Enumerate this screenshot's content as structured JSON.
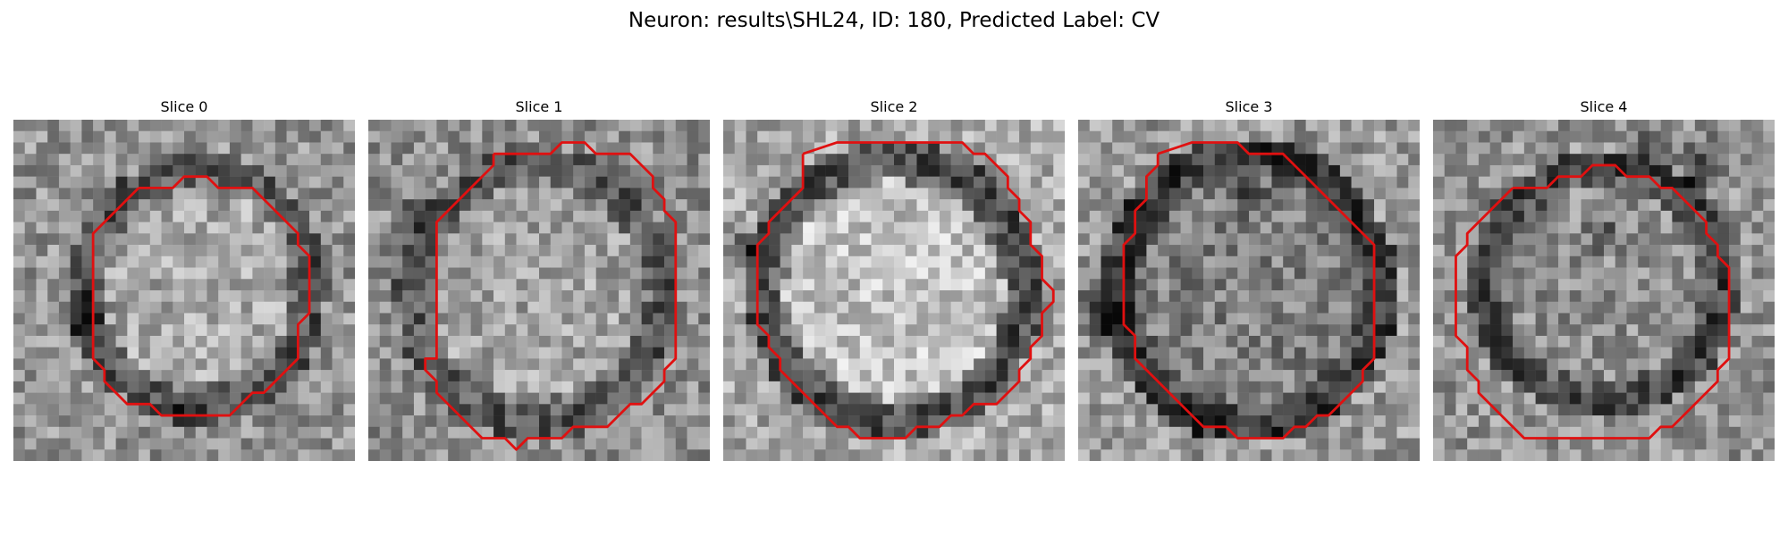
{
  "figure": {
    "title": "Neuron: results\\SHL24, ID: 180, Predicted Label: CV"
  },
  "colors": {
    "background": "#ffffff",
    "contour": "#e01010",
    "colormap": "grayscale"
  },
  "slices": [
    {
      "title": "Slice 0"
    },
    {
      "title": "Slice 1"
    },
    {
      "title": "Slice 2"
    },
    {
      "title": "Slice 3"
    },
    {
      "title": "Slice 4"
    }
  ]
}
